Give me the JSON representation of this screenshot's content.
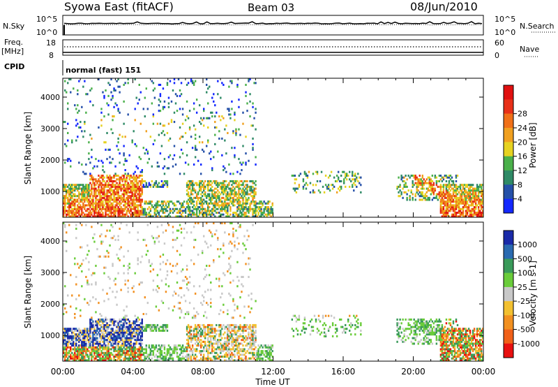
{
  "header": {
    "station": "Syowa East (fitACF)",
    "beam": "Beam 03",
    "date": "08/Jun/2010"
  },
  "top_panels": {
    "nsky": {
      "label": "N.Sky",
      "ticks_left": [
        "10^5",
        "10^0"
      ]
    },
    "nsearch": {
      "label": "N.Search",
      "ticks_right": [
        "10^5",
        "10^0"
      ]
    },
    "freq": {
      "label": "Freq.",
      "unit": "[MHz]",
      "ticks_left": [
        "18",
        "8"
      ]
    },
    "nave": {
      "label": "Nave",
      "ticks_right": [
        "60",
        "0"
      ]
    },
    "cpid": {
      "label": "CPID",
      "value": "normal (fast) 151"
    }
  },
  "chart_data": [
    {
      "type": "heatmap",
      "name": "power",
      "ylabel": "Slant Range [km]",
      "xlabel": "",
      "y_ticks": [
        1000,
        2000,
        3000,
        4000
      ],
      "ylim": [
        180,
        4600
      ],
      "x_ticks": [
        "00:00",
        "04:00",
        "08:00",
        "12:00",
        "16:00",
        "20:00",
        "00:00"
      ],
      "xlim_hours": [
        0,
        24
      ],
      "colorbar": {
        "label": "Power [dB]",
        "ticks": [
          "4",
          "8",
          "12",
          "16",
          "20",
          "24",
          "28"
        ],
        "colors": [
          "#1428ff",
          "#2550a8",
          "#2f8a66",
          "#4ab04a",
          "#e6d220",
          "#f0a020",
          "#f07018",
          "#e83018",
          "#e01010"
        ]
      }
    },
    {
      "type": "heatmap",
      "name": "velocity",
      "ylabel": "Slant Range [km]",
      "xlabel": "Time UT",
      "y_ticks": [
        1000,
        2000,
        3000,
        4000
      ],
      "ylim": [
        180,
        4600
      ],
      "x_ticks": [
        "00:00",
        "04:00",
        "08:00",
        "12:00",
        "16:00",
        "20:00",
        "00:00"
      ],
      "xlim_hours": [
        0,
        24
      ],
      "colorbar": {
        "label": "Velocity [m s-1]",
        "ticks": [
          "1000",
          "500",
          "100",
          "25",
          "-25",
          "-100",
          "-500",
          "-1000"
        ],
        "colors": [
          "#1a2aa8",
          "#2a6ab0",
          "#3a9a5a",
          "#6acc3a",
          "#c8c8c8",
          "#f2c030",
          "#f29020",
          "#f06018",
          "#e81010"
        ]
      }
    }
  ]
}
